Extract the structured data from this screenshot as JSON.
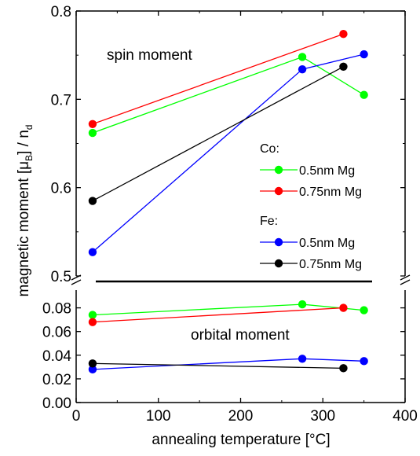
{
  "chart_data": {
    "type": "line",
    "xlabel": "annealing temperature [°C]",
    "ylabel": "magnetic moment [μB] / nd",
    "ylabel_parts": {
      "pre": "magnetic moment [",
      "mu": "μ",
      "sub_b": "B",
      "post": "] / n",
      "sub_d": "d"
    },
    "xlim": [
      0,
      400
    ],
    "x_ticks": [
      "0",
      "100",
      "200",
      "300",
      "400"
    ],
    "axis_break": true,
    "panels": {
      "spin": {
        "annotation": "spin moment",
        "ylim": [
          0.5,
          0.8
        ],
        "y_ticks": [
          "0.5",
          "0.6",
          "0.7",
          "0.8"
        ]
      },
      "orbital": {
        "annotation": "orbital moment",
        "ylim": [
          0.0,
          0.095
        ],
        "y_ticks": [
          "0.00",
          "0.02",
          "0.04",
          "0.06",
          "0.08"
        ]
      }
    },
    "legend": {
      "placement": "right, inside spin panel",
      "groups": [
        {
          "title": "Co:",
          "entries": [
            {
              "label": "0.5nm Mg",
              "color": "#00ff00"
            },
            {
              "label": "0.75nm Mg",
              "color": "#ff0000"
            }
          ]
        },
        {
          "title": "Fe:",
          "entries": [
            {
              "label": "0.5nm Mg",
              "color": "#0000ff"
            },
            {
              "label": "0.75nm Mg",
              "color": "#000000"
            }
          ]
        }
      ]
    },
    "series": [
      {
        "group": "Co",
        "color": "#00ff00",
        "x": [
          20,
          275,
          350
        ],
        "spin": [
          0.662,
          0.748,
          0.705
        ],
        "orbital": [
          0.074,
          0.083,
          0.078
        ]
      },
      {
        "group": "Co",
        "color": "#ff0000",
        "x": [
          20,
          325
        ],
        "spin": [
          0.672,
          0.774
        ],
        "orbital": [
          0.068,
          0.08
        ]
      },
      {
        "group": "Fe",
        "color": "#0000ff",
        "x": [
          20,
          275,
          350
        ],
        "spin": [
          0.527,
          0.734,
          0.751
        ],
        "orbital": [
          0.028,
          0.037,
          0.035
        ]
      },
      {
        "group": "Fe",
        "color": "#000000",
        "x": [
          20,
          325
        ],
        "spin": [
          0.585,
          0.737
        ],
        "orbital": [
          0.033,
          0.029
        ]
      }
    ]
  }
}
